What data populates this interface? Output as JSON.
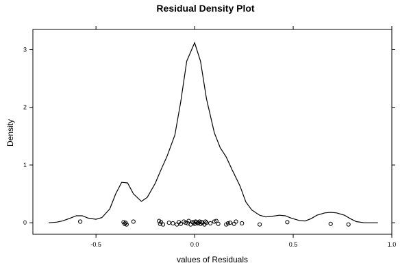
{
  "chart_data": {
    "type": "line",
    "title": "Residual Density Plot",
    "xlabel": "values of Residuals",
    "ylabel": "Density",
    "xlim": [
      -0.82,
      1.0
    ],
    "ylim": [
      -0.2,
      3.35
    ],
    "x_ticks": [
      {
        "value": -0.5,
        "label": "-0.5"
      },
      {
        "value": 0.0,
        "label": "0.0"
      },
      {
        "value": 0.5,
        "label": "0.5"
      },
      {
        "value": 1.0,
        "label": "1.0"
      }
    ],
    "y_ticks": [
      {
        "value": 0,
        "label": "0"
      },
      {
        "value": 1,
        "label": "1"
      },
      {
        "value": 2,
        "label": "2"
      },
      {
        "value": 3,
        "label": "3"
      }
    ],
    "grid": false,
    "series": [
      {
        "x": [
          -0.74,
          -0.7,
          -0.67,
          -0.63,
          -0.6,
          -0.57,
          -0.54,
          -0.5,
          -0.47,
          -0.43,
          -0.4,
          -0.37,
          -0.34,
          -0.31,
          -0.27,
          -0.24,
          -0.2,
          -0.17,
          -0.14,
          -0.1,
          -0.07,
          -0.04,
          0.0,
          0.03,
          0.06,
          0.1,
          0.13,
          0.16,
          0.19,
          0.23,
          0.26,
          0.29,
          0.33,
          0.36,
          0.39,
          0.43,
          0.46,
          0.49,
          0.53,
          0.56,
          0.59,
          0.62,
          0.66,
          0.69,
          0.72,
          0.76,
          0.79,
          0.82,
          0.86,
          0.89,
          0.93
        ],
        "y": [
          0.0,
          0.01,
          0.03,
          0.08,
          0.12,
          0.12,
          0.08,
          0.06,
          0.09,
          0.24,
          0.5,
          0.7,
          0.69,
          0.5,
          0.37,
          0.44,
          0.68,
          0.92,
          1.15,
          1.52,
          2.1,
          2.8,
          3.12,
          2.8,
          2.15,
          1.56,
          1.3,
          1.14,
          0.92,
          0.64,
          0.36,
          0.22,
          0.13,
          0.1,
          0.11,
          0.13,
          0.12,
          0.08,
          0.04,
          0.03,
          0.07,
          0.13,
          0.17,
          0.18,
          0.17,
          0.13,
          0.07,
          0.02,
          0.0,
          0.0,
          0.0
        ]
      }
    ],
    "rug_points": {
      "x": [
        -0.58,
        -0.36,
        -0.355,
        -0.35,
        -0.345,
        -0.31,
        -0.18,
        -0.175,
        -0.17,
        -0.16,
        -0.13,
        -0.11,
        -0.09,
        -0.08,
        -0.07,
        -0.055,
        -0.045,
        -0.035,
        -0.03,
        -0.02,
        -0.01,
        -0.005,
        0.0,
        0.005,
        0.01,
        0.015,
        0.02,
        0.025,
        0.03,
        0.035,
        0.04,
        0.05,
        0.055,
        0.06,
        0.08,
        0.1,
        0.11,
        0.12,
        0.16,
        0.17,
        0.18,
        0.2,
        0.21,
        0.24,
        0.33,
        0.47,
        0.69,
        0.78
      ],
      "y": [
        0.02,
        0.01,
        -0.02,
        0.0,
        -0.03,
        0.02,
        0.03,
        -0.02,
        0.01,
        -0.03,
        0.0,
        -0.01,
        -0.03,
        0.01,
        -0.02,
        0.02,
        0.0,
        -0.01,
        0.03,
        -0.03,
        0.01,
        0.0,
        -0.02,
        0.02,
        0.01,
        -0.01,
        0.0,
        0.02,
        -0.02,
        0.01,
        0.0,
        -0.03,
        0.02,
        0.0,
        -0.01,
        0.02,
        0.03,
        -0.02,
        -0.03,
        -0.01,
        0.0,
        -0.02,
        0.02,
        -0.01,
        -0.03,
        0.01,
        -0.02,
        -0.03
      ]
    }
  }
}
